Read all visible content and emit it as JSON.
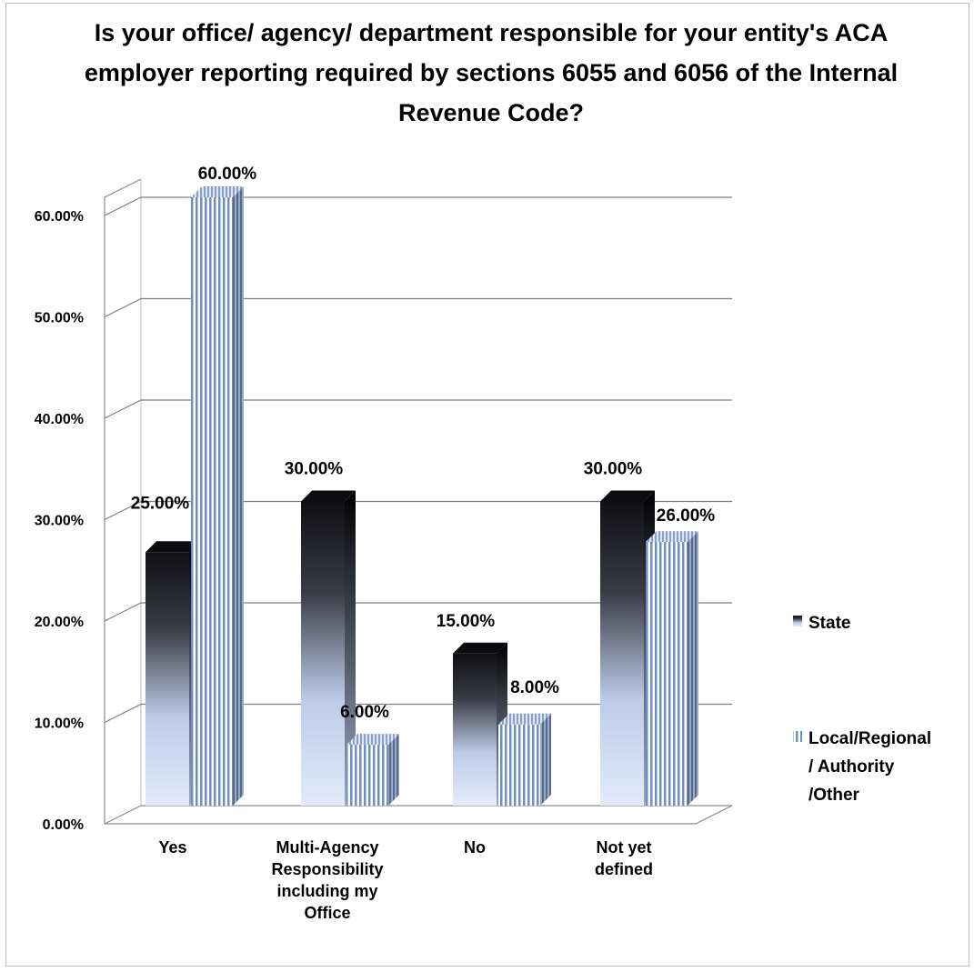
{
  "chart_data": {
    "type": "bar",
    "title": "Is your office/ agency/ department responsible for your entity's ACA employer reporting required by sections 6055 and 6056 of the Internal Revenue Code?",
    "categories": [
      "Yes",
      "Multi-Agency Responsibility including my Office",
      "No",
      "Not yet defined"
    ],
    "series": [
      {
        "name": "State",
        "values": [
          25,
          30,
          15,
          30
        ],
        "labels": [
          "25.00%",
          "30.00%",
          "15.00%",
          "30.00%"
        ],
        "color": "#1a1c22"
      },
      {
        "name": "Local/Regional / Authority /Other",
        "values": [
          60,
          6,
          8,
          26
        ],
        "labels": [
          "60.00%",
          "6.00%",
          "8.00%",
          "26.00%"
        ],
        "color": "#6f8fc4"
      }
    ],
    "ylim": [
      0,
      60
    ],
    "yticks": [
      "0.00%",
      "10.00%",
      "20.00%",
      "30.00%",
      "40.00%",
      "50.00%",
      "60.00%"
    ],
    "xlabel": "",
    "ylabel": "",
    "grid": true,
    "legend": "right",
    "three_d": true
  }
}
